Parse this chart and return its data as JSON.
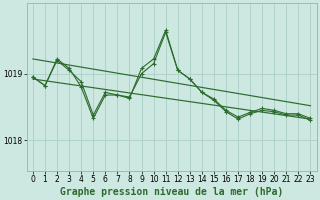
{
  "title": "Graphe pression niveau de la mer (hPa)",
  "background_color": "#cce8e0",
  "grid_color": "#aacfc8",
  "line_color": "#2d6a2d",
  "xlim": [
    -0.5,
    23.5
  ],
  "ylim": [
    1017.55,
    1020.05
  ],
  "yticks": [
    1018,
    1019
  ],
  "xticks": [
    0,
    1,
    2,
    3,
    4,
    5,
    6,
    7,
    8,
    9,
    10,
    11,
    12,
    13,
    14,
    15,
    16,
    17,
    18,
    19,
    20,
    21,
    22,
    23
  ],
  "series1_x": [
    0,
    1,
    2,
    3,
    4,
    5,
    6,
    7,
    8,
    9,
    10,
    11,
    12,
    13,
    14,
    15,
    16,
    17,
    18,
    19,
    20,
    21,
    22,
    23
  ],
  "series1_y": [
    1018.95,
    1018.82,
    1019.2,
    1019.05,
    1018.88,
    1018.38,
    1018.72,
    1018.68,
    1018.65,
    1019.0,
    1019.15,
    1019.62,
    1019.05,
    1018.92,
    1018.72,
    1018.62,
    1018.45,
    1018.35,
    1018.42,
    1018.48,
    1018.45,
    1018.4,
    1018.4,
    1018.33
  ],
  "series2_x": [
    0,
    1,
    2,
    3,
    4,
    5,
    6,
    7,
    8,
    9,
    10,
    11,
    12,
    13,
    14,
    15,
    16,
    17,
    18,
    19,
    20,
    21,
    22,
    23
  ],
  "series2_y": [
    1018.95,
    1018.82,
    1019.22,
    1019.08,
    1018.8,
    1018.33,
    1018.68,
    1018.68,
    1018.63,
    1019.08,
    1019.22,
    1019.65,
    1019.05,
    1018.92,
    1018.72,
    1018.6,
    1018.43,
    1018.32,
    1018.4,
    1018.45,
    1018.43,
    1018.38,
    1018.38,
    1018.3
  ],
  "trend1_x": [
    0,
    23
  ],
  "trend1_y": [
    1019.22,
    1018.52
  ],
  "trend2_x": [
    0,
    23
  ],
  "trend2_y": [
    1018.92,
    1018.32
  ],
  "tick_fontsize": 5.5,
  "label_fontsize": 7.0,
  "spine_color": "#8abaaa"
}
